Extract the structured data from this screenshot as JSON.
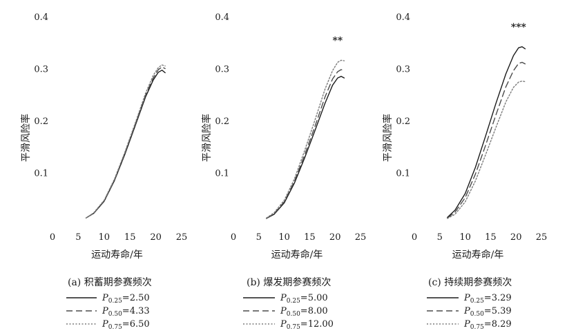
{
  "chart_data": [
    {
      "type": "line",
      "panel": "a",
      "caption": "(a) 积蓄期参赛频次",
      "xlabel": "运动寿命/年",
      "ylabel": "平滑风险率",
      "xlim": [
        0,
        25
      ],
      "ylim": [
        0,
        0.4
      ],
      "xticks": [
        0,
        5,
        10,
        15,
        20,
        25
      ],
      "yticks": [
        0.1,
        0.2,
        0.3,
        0.4
      ],
      "significance": "",
      "series": [
        {
          "name": "P0.25=2.50",
          "legend_p": "P",
          "legend_sub": "0.25",
          "legend_val": "=2.50",
          "style": "solid",
          "x": [
            6.5,
            8,
            10,
            12,
            14,
            16,
            18,
            19.5,
            20.5,
            21.2,
            21.8
          ],
          "y": [
            0.013,
            0.022,
            0.045,
            0.085,
            0.135,
            0.19,
            0.245,
            0.278,
            0.293,
            0.297,
            0.292
          ]
        },
        {
          "name": "P0.50=4.33",
          "legend_p": "P",
          "legend_sub": "0.50",
          "legend_val": "=4.33",
          "style": "dashed",
          "x": [
            6.5,
            8,
            10,
            12,
            14,
            16,
            18,
            19.5,
            20.5,
            21.2,
            21.8
          ],
          "y": [
            0.013,
            0.022,
            0.046,
            0.086,
            0.137,
            0.192,
            0.248,
            0.282,
            0.298,
            0.303,
            0.3
          ]
        },
        {
          "name": "P0.75=6.50",
          "legend_p": "P",
          "legend_sub": "0.75",
          "legend_val": "=6.50",
          "style": "dotted",
          "x": [
            6.5,
            8,
            10,
            12,
            14,
            16,
            18,
            19.5,
            20.5,
            21.2,
            21.8
          ],
          "y": [
            0.013,
            0.023,
            0.047,
            0.088,
            0.139,
            0.195,
            0.252,
            0.287,
            0.302,
            0.307,
            0.305
          ]
        }
      ]
    },
    {
      "type": "line",
      "panel": "b",
      "caption": "(b) 爆发期参赛频次",
      "xlabel": "运动寿命/年",
      "ylabel": "平滑风险率",
      "xlim": [
        0,
        25
      ],
      "ylim": [
        0,
        0.4
      ],
      "xticks": [
        0,
        5,
        10,
        15,
        20,
        25
      ],
      "yticks": [
        0.1,
        0.2,
        0.3,
        0.4
      ],
      "significance": "**",
      "series": [
        {
          "name": "P0.25=5.00",
          "legend_p": "P",
          "legend_sub": "0.25",
          "legend_val": "=5.00",
          "style": "solid",
          "x": [
            6.5,
            8,
            10,
            12,
            14,
            16,
            18,
            19.5,
            20.5,
            21.2,
            21.8
          ],
          "y": [
            0.012,
            0.02,
            0.042,
            0.08,
            0.128,
            0.18,
            0.233,
            0.268,
            0.282,
            0.285,
            0.282
          ]
        },
        {
          "name": "P0.50=8.00",
          "legend_p": "P",
          "legend_sub": "0.50",
          "legend_val": "=8.00",
          "style": "dashed",
          "x": [
            6.5,
            8,
            10,
            12,
            14,
            16,
            18,
            19.5,
            20.5,
            21.2,
            21.8
          ],
          "y": [
            0.012,
            0.021,
            0.044,
            0.083,
            0.134,
            0.188,
            0.245,
            0.28,
            0.294,
            0.298,
            0.296
          ]
        },
        {
          "name": "P0.75=12.00",
          "legend_p": "P",
          "legend_sub": "0.75",
          "legend_val": "=12.00",
          "style": "dotted",
          "x": [
            6.5,
            8,
            10,
            12,
            14,
            16,
            18,
            19.5,
            20.5,
            21.2,
            21.8
          ],
          "y": [
            0.013,
            0.023,
            0.047,
            0.088,
            0.142,
            0.2,
            0.26,
            0.296,
            0.312,
            0.316,
            0.315
          ]
        }
      ]
    },
    {
      "type": "line",
      "panel": "c",
      "caption": "(c) 持续期参赛频次",
      "xlabel": "运动寿命/年",
      "ylabel": "平滑风险率",
      "xlim": [
        0,
        25
      ],
      "ylim": [
        0,
        0.4
      ],
      "xticks": [
        0,
        5,
        10,
        15,
        20,
        25
      ],
      "yticks": [
        0.1,
        0.2,
        0.3,
        0.4
      ],
      "significance": "***",
      "series": [
        {
          "name": "P0.25=3.29",
          "legend_p": "P",
          "legend_sub": "0.25",
          "legend_val": "=3.29",
          "style": "solid",
          "x": [
            6.5,
            8,
            10,
            12,
            14,
            16,
            18,
            19.5,
            20.5,
            21.2,
            21.8
          ],
          "y": [
            0.014,
            0.028,
            0.06,
            0.11,
            0.17,
            0.232,
            0.29,
            0.325,
            0.34,
            0.342,
            0.338
          ]
        },
        {
          "name": "P0.50=5.39",
          "legend_p": "P",
          "legend_sub": "0.50",
          "legend_val": "=5.39",
          "style": "dashed",
          "x": [
            6.5,
            8,
            10,
            12,
            14,
            16,
            18,
            19.5,
            20.5,
            21.2,
            21.8
          ],
          "y": [
            0.013,
            0.024,
            0.052,
            0.097,
            0.152,
            0.21,
            0.265,
            0.296,
            0.31,
            0.312,
            0.309
          ]
        },
        {
          "name": "P0.75=8.29",
          "legend_p": "P",
          "legend_sub": "0.75",
          "legend_val": "=8.29",
          "style": "dotted",
          "x": [
            6.5,
            8,
            10,
            12,
            14,
            16,
            18,
            19.5,
            20.5,
            21.2,
            21.8
          ],
          "y": [
            0.012,
            0.02,
            0.044,
            0.084,
            0.134,
            0.186,
            0.236,
            0.264,
            0.274,
            0.276,
            0.275
          ]
        }
      ]
    }
  ]
}
